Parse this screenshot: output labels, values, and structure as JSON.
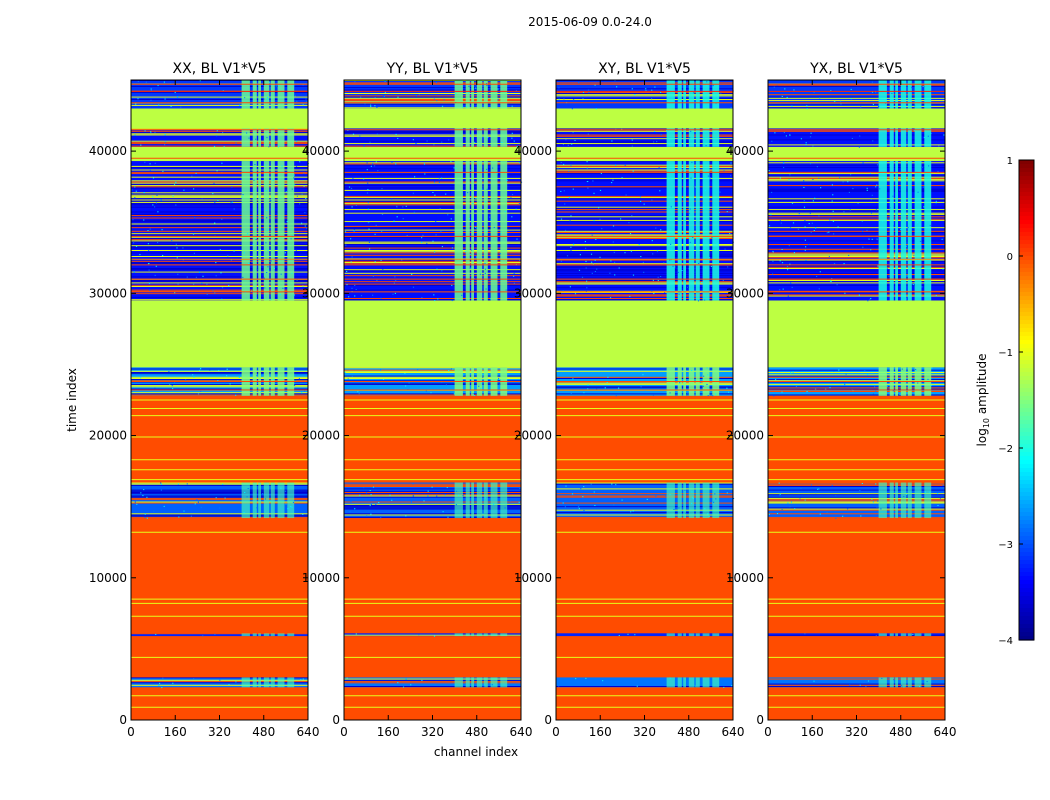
{
  "chart_data": {
    "type": "heatmap",
    "suptitle": "2015-06-09 0.0-24.0",
    "xlabel": "channel index",
    "ylabel": "time index",
    "xlim": [
      0,
      640
    ],
    "ylim": [
      0,
      45000
    ],
    "xticks": [
      0,
      160,
      320,
      480,
      640
    ],
    "yticks": [
      0,
      10000,
      20000,
      30000,
      40000
    ],
    "colorbar": {
      "label_prefix": "log",
      "label_sub": "10",
      "label_suffix": " amplitude",
      "range": [
        -4,
        1
      ],
      "ticks": [
        1,
        0,
        -1,
        -2,
        -3,
        -4
      ],
      "tick_labels": [
        "1",
        "0",
        "−1",
        "−2",
        "−3",
        "−4"
      ]
    },
    "panels": [
      {
        "title": "XX, BL V1*V5",
        "stronger_mid_band": true
      },
      {
        "title": "YY, BL V1*V5",
        "stronger_mid_band": true
      },
      {
        "title": "XY, BL V1*V5",
        "stronger_mid_band": false
      },
      {
        "title": "YX, BL V1*V5",
        "stronger_mid_band": false
      }
    ],
    "bands": [
      {
        "t0": 0,
        "t1": 2300,
        "value": 0.0,
        "kind": "flat"
      },
      {
        "t0": 2300,
        "t1": 3000,
        "value": -2.8,
        "kind": "noisy"
      },
      {
        "t0": 3000,
        "t1": 5900,
        "value": 0.0,
        "kind": "flat"
      },
      {
        "t0": 5900,
        "t1": 6100,
        "value": -3.2,
        "kind": "noisy"
      },
      {
        "t0": 6100,
        "t1": 14200,
        "value": 0.0,
        "kind": "flat"
      },
      {
        "t0": 14200,
        "t1": 16700,
        "value": -2.9,
        "kind": "noisy"
      },
      {
        "t0": 16700,
        "t1": 22800,
        "value": 0.0,
        "kind": "flat"
      },
      {
        "t0": 22800,
        "t1": 24800,
        "value": -2.6,
        "kind": "noisy"
      },
      {
        "t0": 24800,
        "t1": 29500,
        "value": -1.2,
        "kind": "flat"
      },
      {
        "t0": 29500,
        "t1": 39300,
        "value": -3.3,
        "kind": "noisy"
      },
      {
        "t0": 39300,
        "t1": 40300,
        "value": -1.2,
        "kind": "flat"
      },
      {
        "t0": 40300,
        "t1": 41600,
        "value": -3.3,
        "kind": "noisy"
      },
      {
        "t0": 41600,
        "t1": 43000,
        "value": -1.2,
        "kind": "flat"
      },
      {
        "t0": 43000,
        "t1": 45000,
        "value": -3.1,
        "kind": "noisy"
      }
    ],
    "thin_lines": [
      {
        "t": 900,
        "value": -1.0
      },
      {
        "t": 1700,
        "value": -1.0
      },
      {
        "t": 4400,
        "value": -1.0
      },
      {
        "t": 7300,
        "value": -1.0
      },
      {
        "t": 8200,
        "value": -1.0
      },
      {
        "t": 8500,
        "value": -1.0
      },
      {
        "t": 13200,
        "value": -1.0
      },
      {
        "t": 16900,
        "value": -1.0
      },
      {
        "t": 17600,
        "value": -1.0
      },
      {
        "t": 18300,
        "value": -1.0
      },
      {
        "t": 19900,
        "value": -1.0
      },
      {
        "t": 21400,
        "value": -1.0
      },
      {
        "t": 21900,
        "value": -1.0
      },
      {
        "t": 22500,
        "value": -1.0
      },
      {
        "t": 23200,
        "value": 0.0
      },
      {
        "t": 23800,
        "value": 0.0
      },
      {
        "t": 30100,
        "value": 0.0
      },
      {
        "t": 31000,
        "value": 0.0
      },
      {
        "t": 32000,
        "value": 0.0
      },
      {
        "t": 32400,
        "value": -0.3
      },
      {
        "t": 34000,
        "value": 0.0
      },
      {
        "t": 38500,
        "value": 0.0
      },
      {
        "t": 39500,
        "value": 0.0
      },
      {
        "t": 41500,
        "value": 0.0
      },
      {
        "t": 43400,
        "value": 0.0
      },
      {
        "t": 44200,
        "value": 0.2
      },
      {
        "t": 44700,
        "value": 0.0
      }
    ],
    "active_channels": [
      [
        400,
        430
      ],
      [
        440,
        455
      ],
      [
        460,
        470
      ],
      [
        480,
        500
      ],
      [
        505,
        520
      ],
      [
        530,
        555
      ],
      [
        565,
        590
      ]
    ]
  }
}
